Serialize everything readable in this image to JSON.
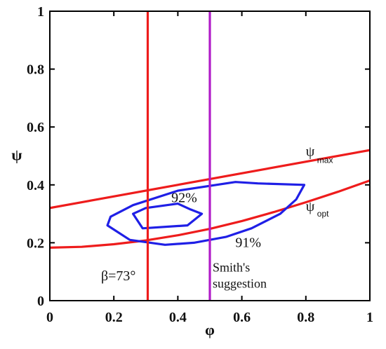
{
  "chart_data": {
    "type": "line",
    "xlabel": "φ",
    "ylabel": "ψ",
    "xlim": [
      0,
      1
    ],
    "ylim": [
      0,
      1
    ],
    "x_ticks": [
      "0",
      "0.2",
      "0.4",
      "0.6",
      "0.8",
      "1"
    ],
    "y_ticks": [
      "0",
      "0.2",
      "0.4",
      "0.6",
      "0.8",
      "1"
    ],
    "grid": false,
    "colors": {
      "efficiency_contours": "#1f1fe6",
      "bounds": "#ee1c1c",
      "smith": "#b01bc8"
    },
    "series": [
      {
        "key": "psi_max",
        "label": "ψ",
        "subscript": "max",
        "color": "#ee1c1c",
        "points": [
          [
            0,
            0.32
          ],
          [
            1,
            0.52
          ]
        ]
      },
      {
        "key": "psi_opt",
        "label": "ψ",
        "subscript": "opt",
        "color": "#ee1c1c",
        "points": [
          [
            0,
            0.183
          ],
          [
            0.1,
            0.186
          ],
          [
            0.2,
            0.195
          ],
          [
            0.3,
            0.208
          ],
          [
            0.4,
            0.226
          ],
          [
            0.5,
            0.248
          ],
          [
            0.6,
            0.275
          ],
          [
            0.7,
            0.306
          ],
          [
            0.8,
            0.34
          ],
          [
            0.9,
            0.376
          ],
          [
            1,
            0.415
          ]
        ]
      },
      {
        "key": "contour_91",
        "label": "91%",
        "color": "#1f1fe6",
        "closed": true,
        "points": [
          [
            0.18,
            0.26
          ],
          [
            0.19,
            0.29
          ],
          [
            0.26,
            0.33
          ],
          [
            0.4,
            0.38
          ],
          [
            0.58,
            0.41
          ],
          [
            0.65,
            0.405
          ],
          [
            0.795,
            0.4
          ],
          [
            0.77,
            0.35
          ],
          [
            0.72,
            0.3
          ],
          [
            0.63,
            0.25
          ],
          [
            0.55,
            0.22
          ],
          [
            0.45,
            0.2
          ],
          [
            0.36,
            0.193
          ],
          [
            0.25,
            0.21
          ]
        ]
      },
      {
        "key": "contour_92",
        "label": "92%",
        "color": "#1f1fe6",
        "closed": true,
        "points": [
          [
            0.26,
            0.3
          ],
          [
            0.3,
            0.32
          ],
          [
            0.4,
            0.335
          ],
          [
            0.44,
            0.315
          ],
          [
            0.475,
            0.3
          ],
          [
            0.43,
            0.26
          ],
          [
            0.29,
            0.25
          ]
        ]
      },
      {
        "key": "beta_line",
        "label": "β=73°",
        "color": "#ee1c1c",
        "points": [
          [
            0.306,
            0
          ],
          [
            0.306,
            1
          ]
        ]
      },
      {
        "key": "smith_line",
        "label": "Smith's suggestion",
        "color": "#b01bc8",
        "points": [
          [
            0.5,
            0
          ],
          [
            0.5,
            1
          ]
        ]
      }
    ],
    "annotations": {
      "psi_max": {
        "text": "ψ",
        "sub": "max",
        "at": [
          0.8,
          0.5
        ]
      },
      "psi_opt": {
        "text": "ψ",
        "sub": "opt",
        "at": [
          0.8,
          0.31
        ]
      },
      "contour_92": {
        "text": "92%",
        "at": [
          0.42,
          0.34
        ]
      },
      "contour_91": {
        "text": "91%",
        "at": [
          0.62,
          0.185
        ]
      },
      "beta": {
        "text": "β=73°",
        "at": [
          0.16,
          0.07
        ]
      },
      "smith_line1": {
        "text": "Smith's",
        "at": [
          0.5,
          0.1
        ]
      },
      "smith_line2": {
        "text": "suggestion",
        "at": [
          0.5,
          0.045
        ]
      }
    }
  }
}
